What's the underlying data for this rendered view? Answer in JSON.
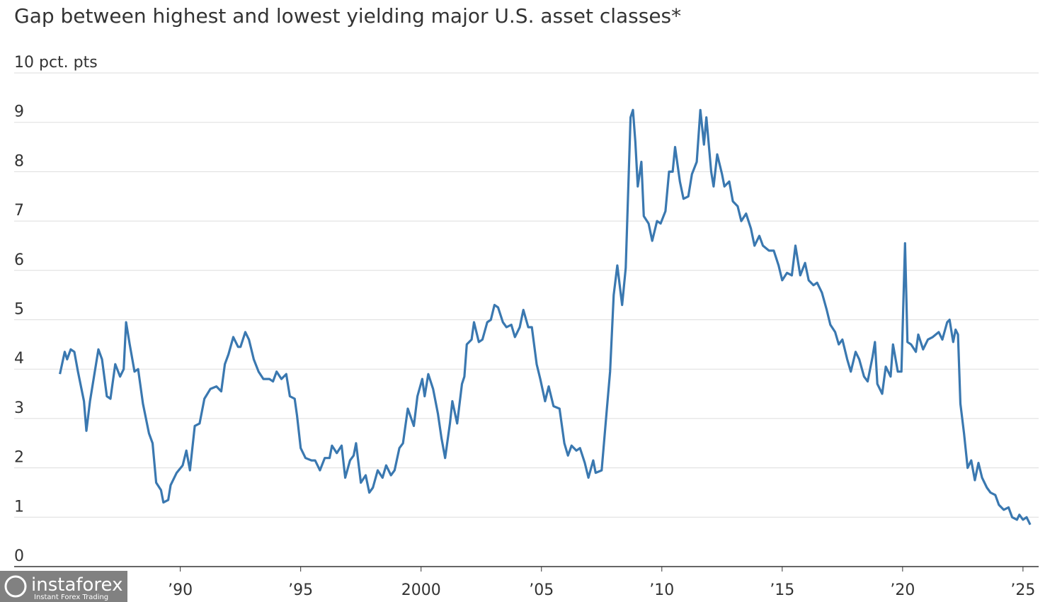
{
  "chart_data": {
    "type": "line",
    "title": "Gap between highest and lowest yielding major U.S. asset classes*",
    "watermark": {
      "brand": "instaforex",
      "tagline": "Instant Forex Trading"
    },
    "color": "#3a78b0",
    "x": [
      1985.0,
      1985.2,
      1985.3,
      1985.45,
      1985.6,
      1985.75,
      1986.0,
      1986.1,
      1986.25,
      1986.4,
      1986.6,
      1986.75,
      1986.95,
      1987.1,
      1987.3,
      1987.5,
      1987.65,
      1987.75,
      1987.9,
      1988.1,
      1988.25,
      1988.45,
      1988.7,
      1988.85,
      1989.0,
      1989.2,
      1989.3,
      1989.5,
      1989.6,
      1989.85,
      1990.1,
      1990.25,
      1990.4,
      1990.6,
      1990.8,
      1991.0,
      1991.25,
      1991.5,
      1991.7,
      1991.85,
      1992.0,
      1992.2,
      1992.4,
      1992.5,
      1992.7,
      1992.85,
      1993.05,
      1993.25,
      1993.45,
      1993.7,
      1993.85,
      1994.0,
      1994.2,
      1994.4,
      1994.55,
      1994.75,
      1994.85,
      1995.0,
      1995.2,
      1995.45,
      1995.6,
      1995.8,
      1996.0,
      1996.2,
      1996.3,
      1996.5,
      1996.7,
      1996.85,
      1997.05,
      1997.2,
      1997.3,
      1997.5,
      1997.7,
      1997.85,
      1998.0,
      1998.2,
      1998.4,
      1998.55,
      1998.75,
      1998.9,
      1999.1,
      1999.25,
      1999.45,
      1999.7,
      1999.85,
      2000.05,
      2000.15,
      2000.3,
      2000.5,
      2000.7,
      2000.85,
      2001.0,
      2001.2,
      2001.3,
      2001.5,
      2001.7,
      2001.8,
      2001.9,
      2002.1,
      2002.2,
      2002.4,
      2002.55,
      2002.75,
      2002.9,
      2003.05,
      2003.2,
      2003.4,
      2003.55,
      2003.75,
      2003.9,
      2004.1,
      2004.25,
      2004.45,
      2004.6,
      2004.8,
      2004.95,
      2005.15,
      2005.3,
      2005.5,
      2005.75,
      2005.95,
      2006.1,
      2006.25,
      2006.45,
      2006.6,
      2006.8,
      2006.95,
      2007.15,
      2007.25,
      2007.5,
      2007.7,
      2007.85,
      2008.0,
      2008.15,
      2008.35,
      2008.5,
      2008.7,
      2008.8,
      2008.9,
      2009.0,
      2009.15,
      2009.25,
      2009.45,
      2009.6,
      2009.8,
      2009.95,
      2010.15,
      2010.3,
      2010.45,
      2010.55,
      2010.75,
      2010.9,
      2011.1,
      2011.25,
      2011.45,
      2011.6,
      2011.75,
      2011.85,
      2012.05,
      2012.15,
      2012.3,
      2012.5,
      2012.6,
      2012.8,
      2012.95,
      2013.15,
      2013.3,
      2013.5,
      2013.7,
      2013.85,
      2014.05,
      2014.2,
      2014.45,
      2014.65,
      2014.85,
      2015.0,
      2015.2,
      2015.4,
      2015.55,
      2015.75,
      2015.95,
      2016.1,
      2016.3,
      2016.45,
      2016.65,
      2016.85,
      2017.0,
      2017.2,
      2017.35,
      2017.5,
      2017.7,
      2017.85,
      2018.05,
      2018.2,
      2018.4,
      2018.55,
      2018.75,
      2018.85,
      2018.95,
      2019.15,
      2019.3,
      2019.5,
      2019.6,
      2019.8,
      2019.95,
      2020.1,
      2020.2,
      2020.35,
      2020.55,
      2020.65,
      2020.85,
      2021.05,
      2021.25,
      2021.5,
      2021.65,
      2021.85,
      2021.95,
      2022.1,
      2022.2,
      2022.3,
      2022.4,
      2022.55,
      2022.7,
      2022.85,
      2023.0,
      2023.15,
      2023.3,
      2023.5,
      2023.65,
      2023.85,
      2024.0,
      2024.2,
      2024.4,
      2024.55,
      2024.75,
      2024.85,
      2025.0,
      2025.15,
      2025.3
    ],
    "values": [
      3.9,
      4.35,
      4.2,
      4.4,
      4.35,
      3.95,
      3.35,
      2.75,
      3.35,
      3.8,
      4.4,
      4.2,
      3.45,
      3.4,
      4.1,
      3.85,
      4.0,
      4.95,
      4.5,
      3.95,
      4.0,
      3.3,
      2.7,
      2.5,
      1.7,
      1.55,
      1.3,
      1.35,
      1.65,
      1.9,
      2.05,
      2.35,
      1.95,
      2.85,
      2.9,
      3.4,
      3.6,
      3.65,
      3.55,
      4.1,
      4.3,
      4.65,
      4.45,
      4.45,
      4.75,
      4.6,
      4.2,
      3.95,
      3.8,
      3.8,
      3.75,
      3.95,
      3.8,
      3.9,
      3.45,
      3.4,
      3.05,
      2.4,
      2.2,
      2.15,
      2.15,
      1.95,
      2.2,
      2.2,
      2.45,
      2.3,
      2.45,
      1.8,
      2.15,
      2.25,
      2.5,
      1.7,
      1.85,
      1.5,
      1.6,
      1.95,
      1.8,
      2.05,
      1.85,
      1.95,
      2.4,
      2.5,
      3.2,
      2.85,
      3.45,
      3.8,
      3.45,
      3.9,
      3.6,
      3.1,
      2.6,
      2.2,
      2.9,
      3.35,
      2.9,
      3.7,
      3.85,
      4.5,
      4.6,
      4.95,
      4.55,
      4.6,
      4.95,
      5.0,
      5.3,
      5.25,
      4.95,
      4.85,
      4.9,
      4.65,
      4.85,
      5.2,
      4.85,
      4.85,
      4.1,
      3.8,
      3.35,
      3.65,
      3.25,
      3.2,
      2.5,
      2.25,
      2.45,
      2.35,
      2.4,
      2.1,
      1.8,
      2.15,
      1.9,
      1.95,
      3.1,
      3.95,
      5.5,
      6.1,
      5.3,
      6.05,
      9.1,
      9.25,
      8.6,
      7.7,
      8.2,
      7.1,
      6.95,
      6.6,
      7.0,
      6.95,
      7.2,
      8.0,
      8.0,
      8.5,
      7.8,
      7.45,
      7.5,
      7.95,
      8.2,
      9.25,
      8.55,
      9.1,
      8.0,
      7.7,
      8.35,
      7.95,
      7.7,
      7.8,
      7.4,
      7.3,
      7.0,
      7.15,
      6.85,
      6.5,
      6.7,
      6.5,
      6.4,
      6.4,
      6.1,
      5.8,
      5.95,
      5.9,
      6.5,
      5.9,
      6.15,
      5.8,
      5.7,
      5.75,
      5.55,
      5.2,
      4.9,
      4.75,
      4.5,
      4.6,
      4.2,
      3.95,
      4.35,
      4.2,
      3.85,
      3.75,
      4.25,
      4.55,
      3.7,
      3.5,
      4.05,
      3.85,
      4.5,
      3.95,
      3.95,
      6.55,
      4.55,
      4.5,
      4.35,
      4.7,
      4.4,
      4.6,
      4.65,
      4.75,
      4.6,
      4.95,
      5.0,
      4.55,
      4.8,
      4.7,
      3.3,
      2.7,
      2.0,
      2.15,
      1.75,
      2.1,
      1.8,
      1.6,
      1.5,
      1.45,
      1.25,
      1.15,
      1.2,
      1.0,
      0.95,
      1.05,
      0.95,
      1.0,
      0.85
    ],
    "xlim": [
      1983.1,
      2025.65
    ],
    "xticks": [
      {
        "value": 1990,
        "label": "’90"
      },
      {
        "value": 1995,
        "label": "’95"
      },
      2000,
      {
        "value": 2005,
        "label": "’05"
      },
      {
        "value": 2010,
        "label": "’10"
      },
      {
        "value": 2015,
        "label": "’15"
      },
      {
        "value": 2020,
        "label": "’20"
      },
      {
        "value": 2025,
        "label": "’25"
      }
    ],
    "ylim": [
      0,
      10
    ],
    "yticks": [
      0,
      1,
      2,
      3,
      4,
      5,
      6,
      7,
      8,
      9,
      {
        "value": 10,
        "label": "10 pct. pts"
      }
    ],
    "grid": true
  }
}
